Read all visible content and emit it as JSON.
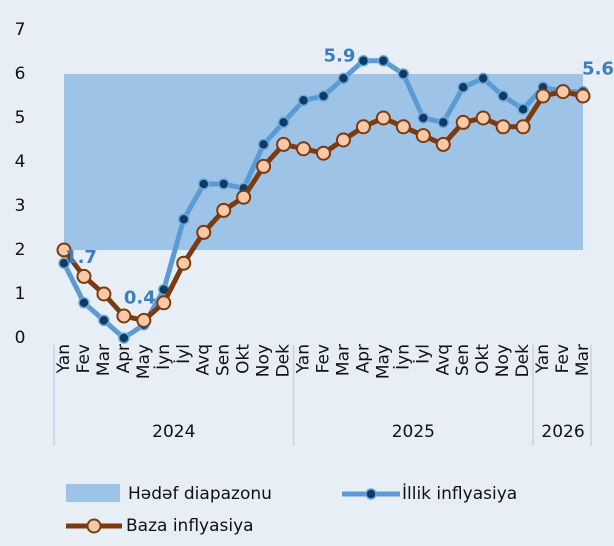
{
  "chart_data": {
    "type": "line",
    "category_groups": [
      {
        "name": "2024",
        "categories": [
          "Yan",
          "Fev",
          "Mar",
          "Apr",
          "May",
          "İyn",
          "İyl",
          "Avq",
          "Sen",
          "Okt",
          "Noy",
          "Dek"
        ]
      },
      {
        "name": "2025",
        "categories": [
          "Yan",
          "Fev",
          "Mar",
          "Apr",
          "May",
          "İyn",
          "İyl",
          "Avq",
          "Sen",
          "Okt",
          "Noy",
          "Dek"
        ]
      },
      {
        "name": "2026",
        "categories": [
          "Yan",
          "Fev",
          "Mar"
        ]
      }
    ],
    "band": {
      "name": "Hədəf diapazonu",
      "range": [
        2,
        6
      ],
      "color": "#9dc3e6"
    },
    "series": [
      {
        "name": "İllik inflyasiya",
        "color": "#5b9bd5",
        "marker_color": "#0d3b66",
        "values": [
          1.7,
          0.8,
          0.4,
          0.0,
          0.3,
          1.1,
          2.7,
          3.5,
          3.5,
          3.4,
          4.4,
          4.9,
          5.4,
          5.5,
          5.9,
          6.3,
          6.3,
          6.0,
          5.0,
          4.9,
          5.7,
          5.9,
          5.5,
          5.2,
          5.7,
          5.6,
          5.6
        ],
        "value_labels": [
          "1.7",
          null,
          null,
          null,
          null,
          null,
          null,
          null,
          null,
          null,
          null,
          null,
          null,
          null,
          "5.9",
          null,
          null,
          null,
          null,
          null,
          null,
          null,
          null,
          null,
          null,
          null,
          "5.6"
        ]
      },
      {
        "name": "Baza inflyasiya",
        "color": "#7b3a10",
        "marker_color": "#f8c9a8",
        "values": [
          2.0,
          1.4,
          1.0,
          0.5,
          0.4,
          0.8,
          1.7,
          2.4,
          2.9,
          3.2,
          3.9,
          4.4,
          4.3,
          4.2,
          4.5,
          4.8,
          5.0,
          4.8,
          4.6,
          4.4,
          4.9,
          5.0,
          4.8,
          4.8,
          5.5,
          5.6,
          5.5
        ],
        "value_labels": [
          null,
          null,
          null,
          null,
          "0.4",
          null,
          null,
          null,
          null,
          null,
          null,
          null,
          null,
          null,
          null,
          null,
          null,
          null,
          null,
          null,
          null,
          null,
          null,
          null,
          null,
          null,
          null
        ]
      }
    ],
    "ylim": [
      0,
      7
    ],
    "yticks": [
      0,
      1,
      2,
      3,
      4,
      5,
      6,
      7
    ]
  }
}
